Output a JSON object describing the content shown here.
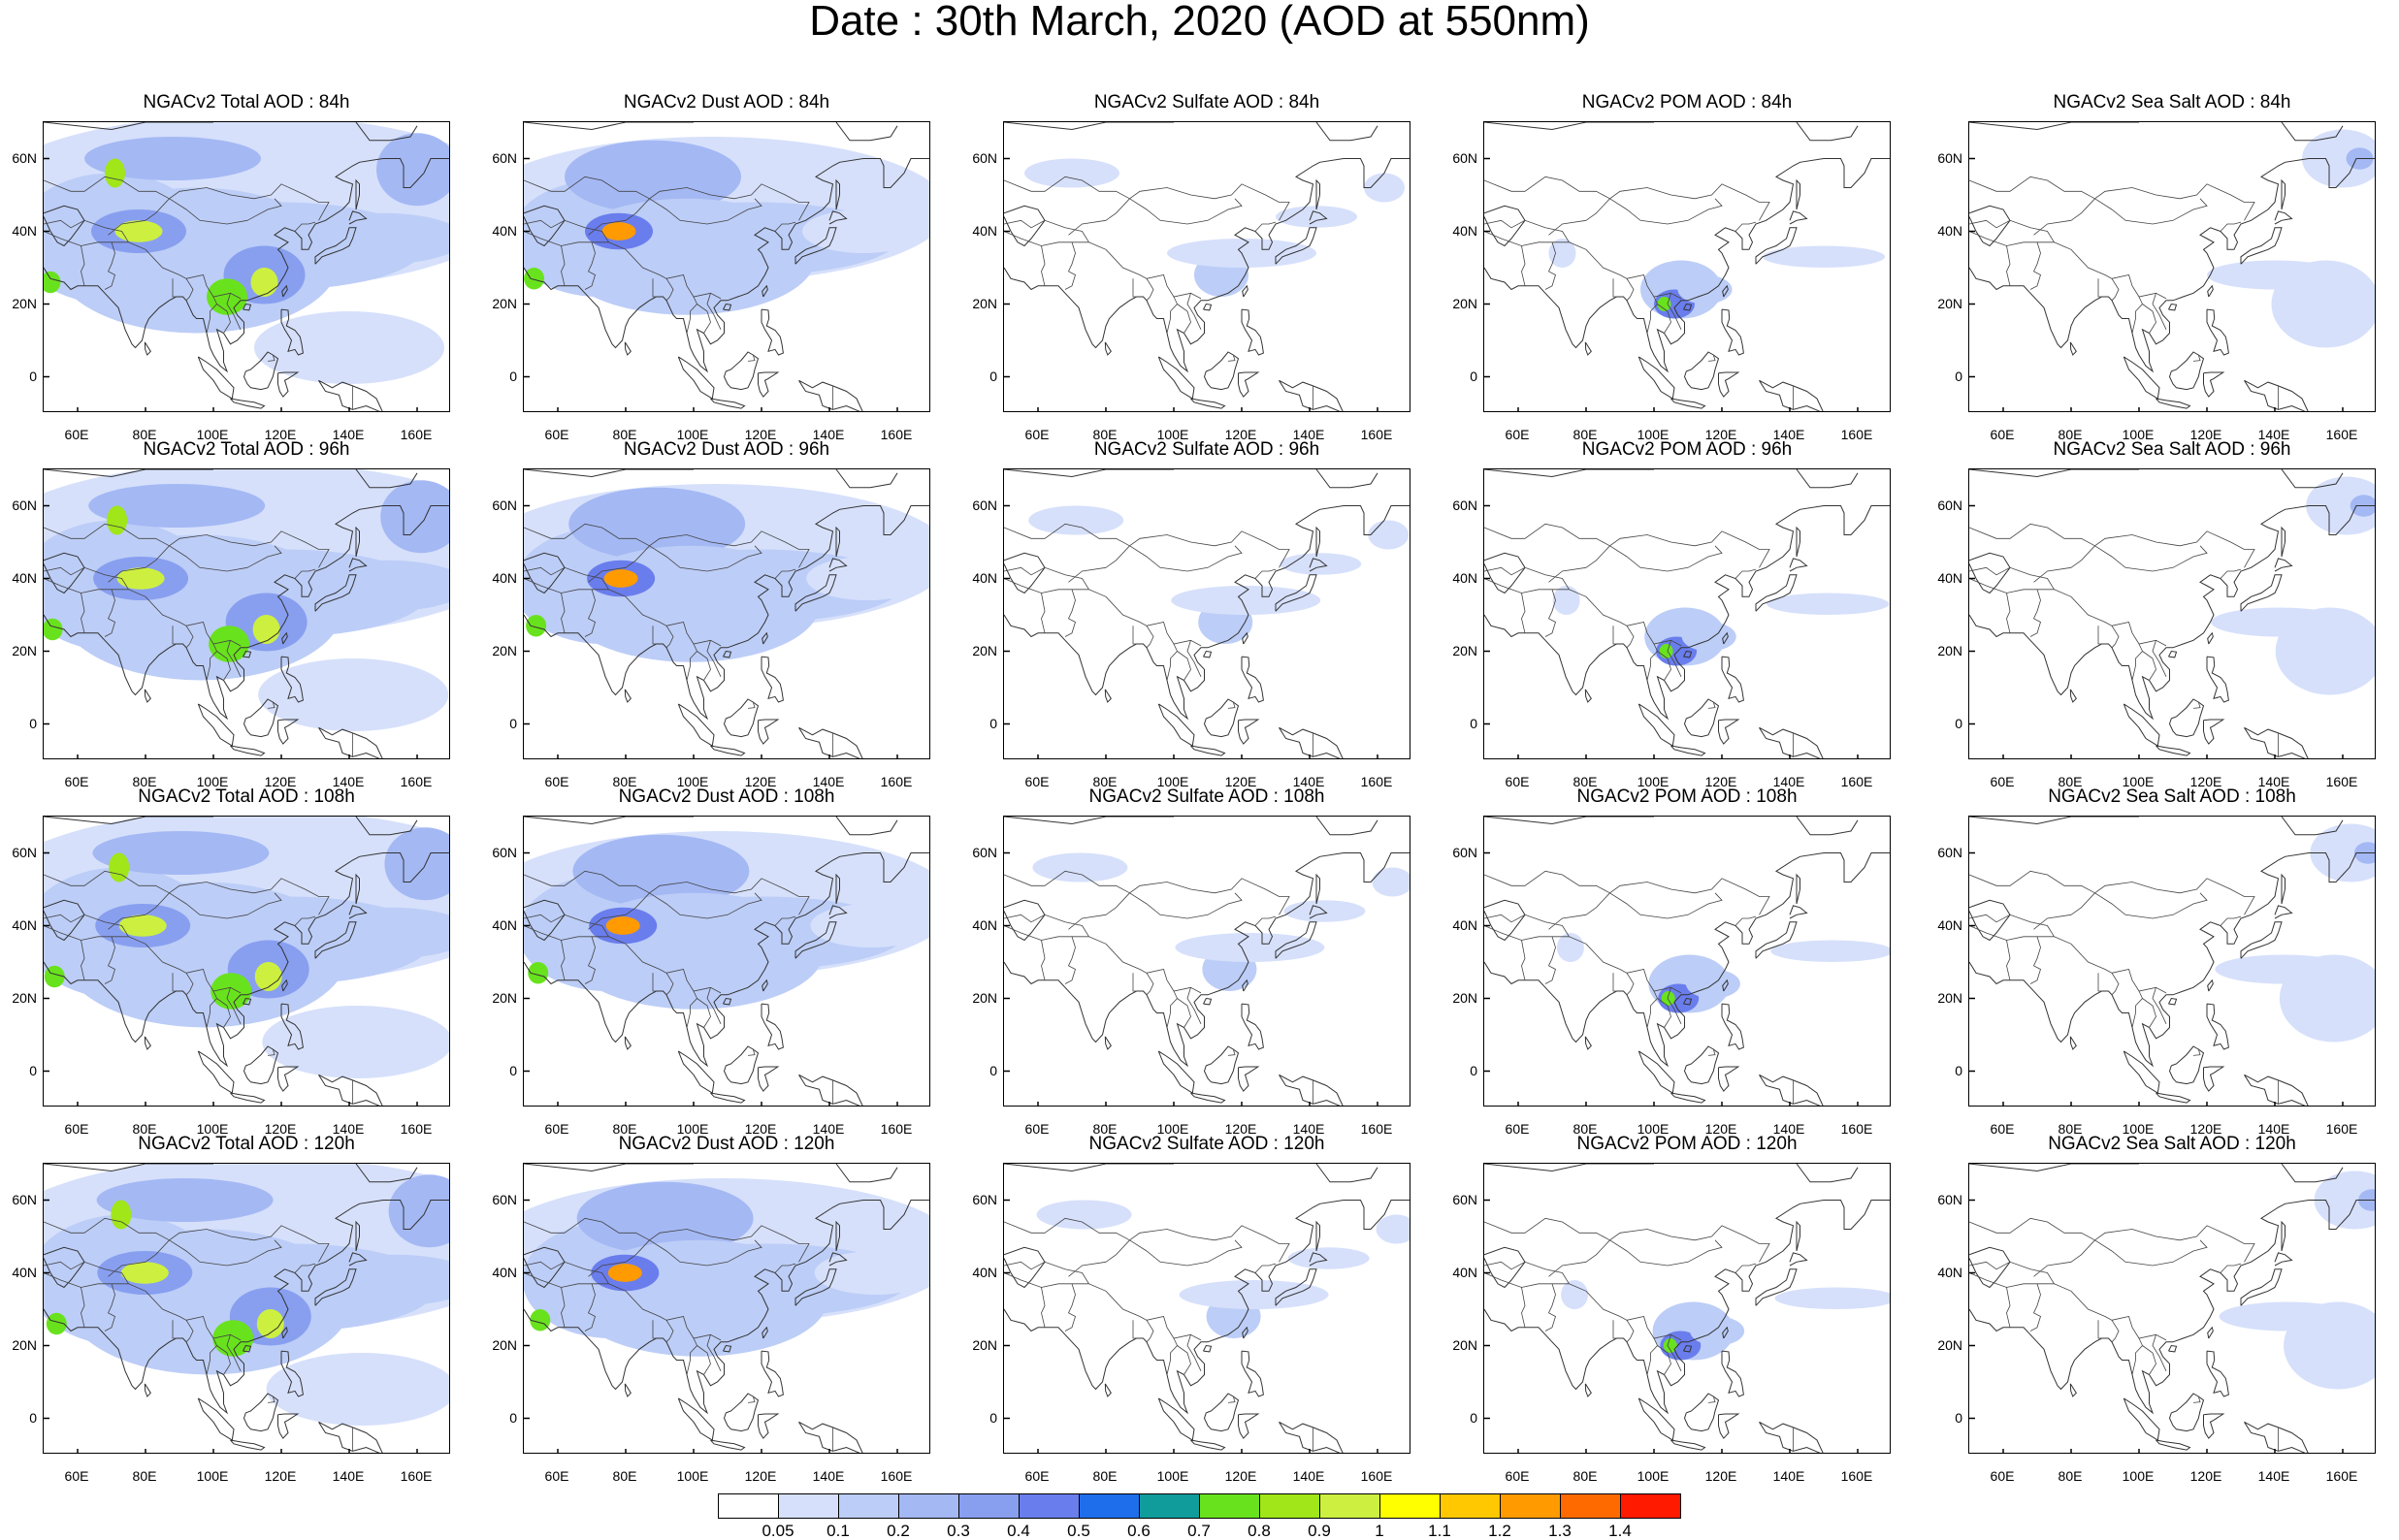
{
  "title": "Date : 30th March, 2020 (AOD at 550nm)",
  "panels": [
    [
      "NGACv2 Total AOD : 84h",
      "NGACv2 Dust AOD : 84h",
      "NGACv2 Sulfate AOD : 84h",
      "NGACv2 POM AOD : 84h",
      "NGACv2 Sea Salt AOD : 84h"
    ],
    [
      "NGACv2 Total AOD : 96h",
      "NGACv2 Dust AOD : 96h",
      "NGACv2 Sulfate AOD : 96h",
      "NGACv2 POM AOD : 96h",
      "NGACv2 Sea Salt AOD : 96h"
    ],
    [
      "NGACv2 Total AOD : 108h",
      "NGACv2 Dust AOD : 108h",
      "NGACv2 Sulfate AOD : 108h",
      "NGACv2 POM AOD : 108h",
      "NGACv2 Sea Salt AOD : 108h"
    ],
    [
      "NGACv2 Total AOD : 120h",
      "NGACv2 Dust AOD : 120h",
      "NGACv2 Sulfate AOD : 120h",
      "NGACv2 POM AOD : 120h",
      "NGACv2 Sea Salt  AOD : 120h"
    ]
  ],
  "lat_ticks": [
    "60N",
    "40N",
    "20N",
    "0"
  ],
  "lat_values": [
    60,
    40,
    20,
    0
  ],
  "lon_ticks": [
    "60E",
    "80E",
    "100E",
    "120E",
    "140E",
    "160E"
  ],
  "lon_values": [
    60,
    80,
    100,
    120,
    140,
    160
  ],
  "map_extent": {
    "lon": [
      50,
      170
    ],
    "lat": [
      -10,
      70
    ]
  },
  "colorbar": {
    "labels": [
      "0.05",
      "0.1",
      "0.2",
      "0.3",
      "0.4",
      "0.5",
      "0.6",
      "0.7",
      "0.8",
      "0.9",
      "1",
      "1.1",
      "1.2",
      "1.3",
      "1.4"
    ],
    "colors": [
      "#ffffff",
      "#d6e0fb",
      "#bccdf7",
      "#a4b8f4",
      "#889ff0",
      "#6a7ded",
      "#1e6eeb",
      "#119c9c",
      "#69e21e",
      "#a0e619",
      "#cdf040",
      "#ffff00",
      "#ffc800",
      "#ff9b00",
      "#ff6a00",
      "#ff1a00"
    ]
  }
}
